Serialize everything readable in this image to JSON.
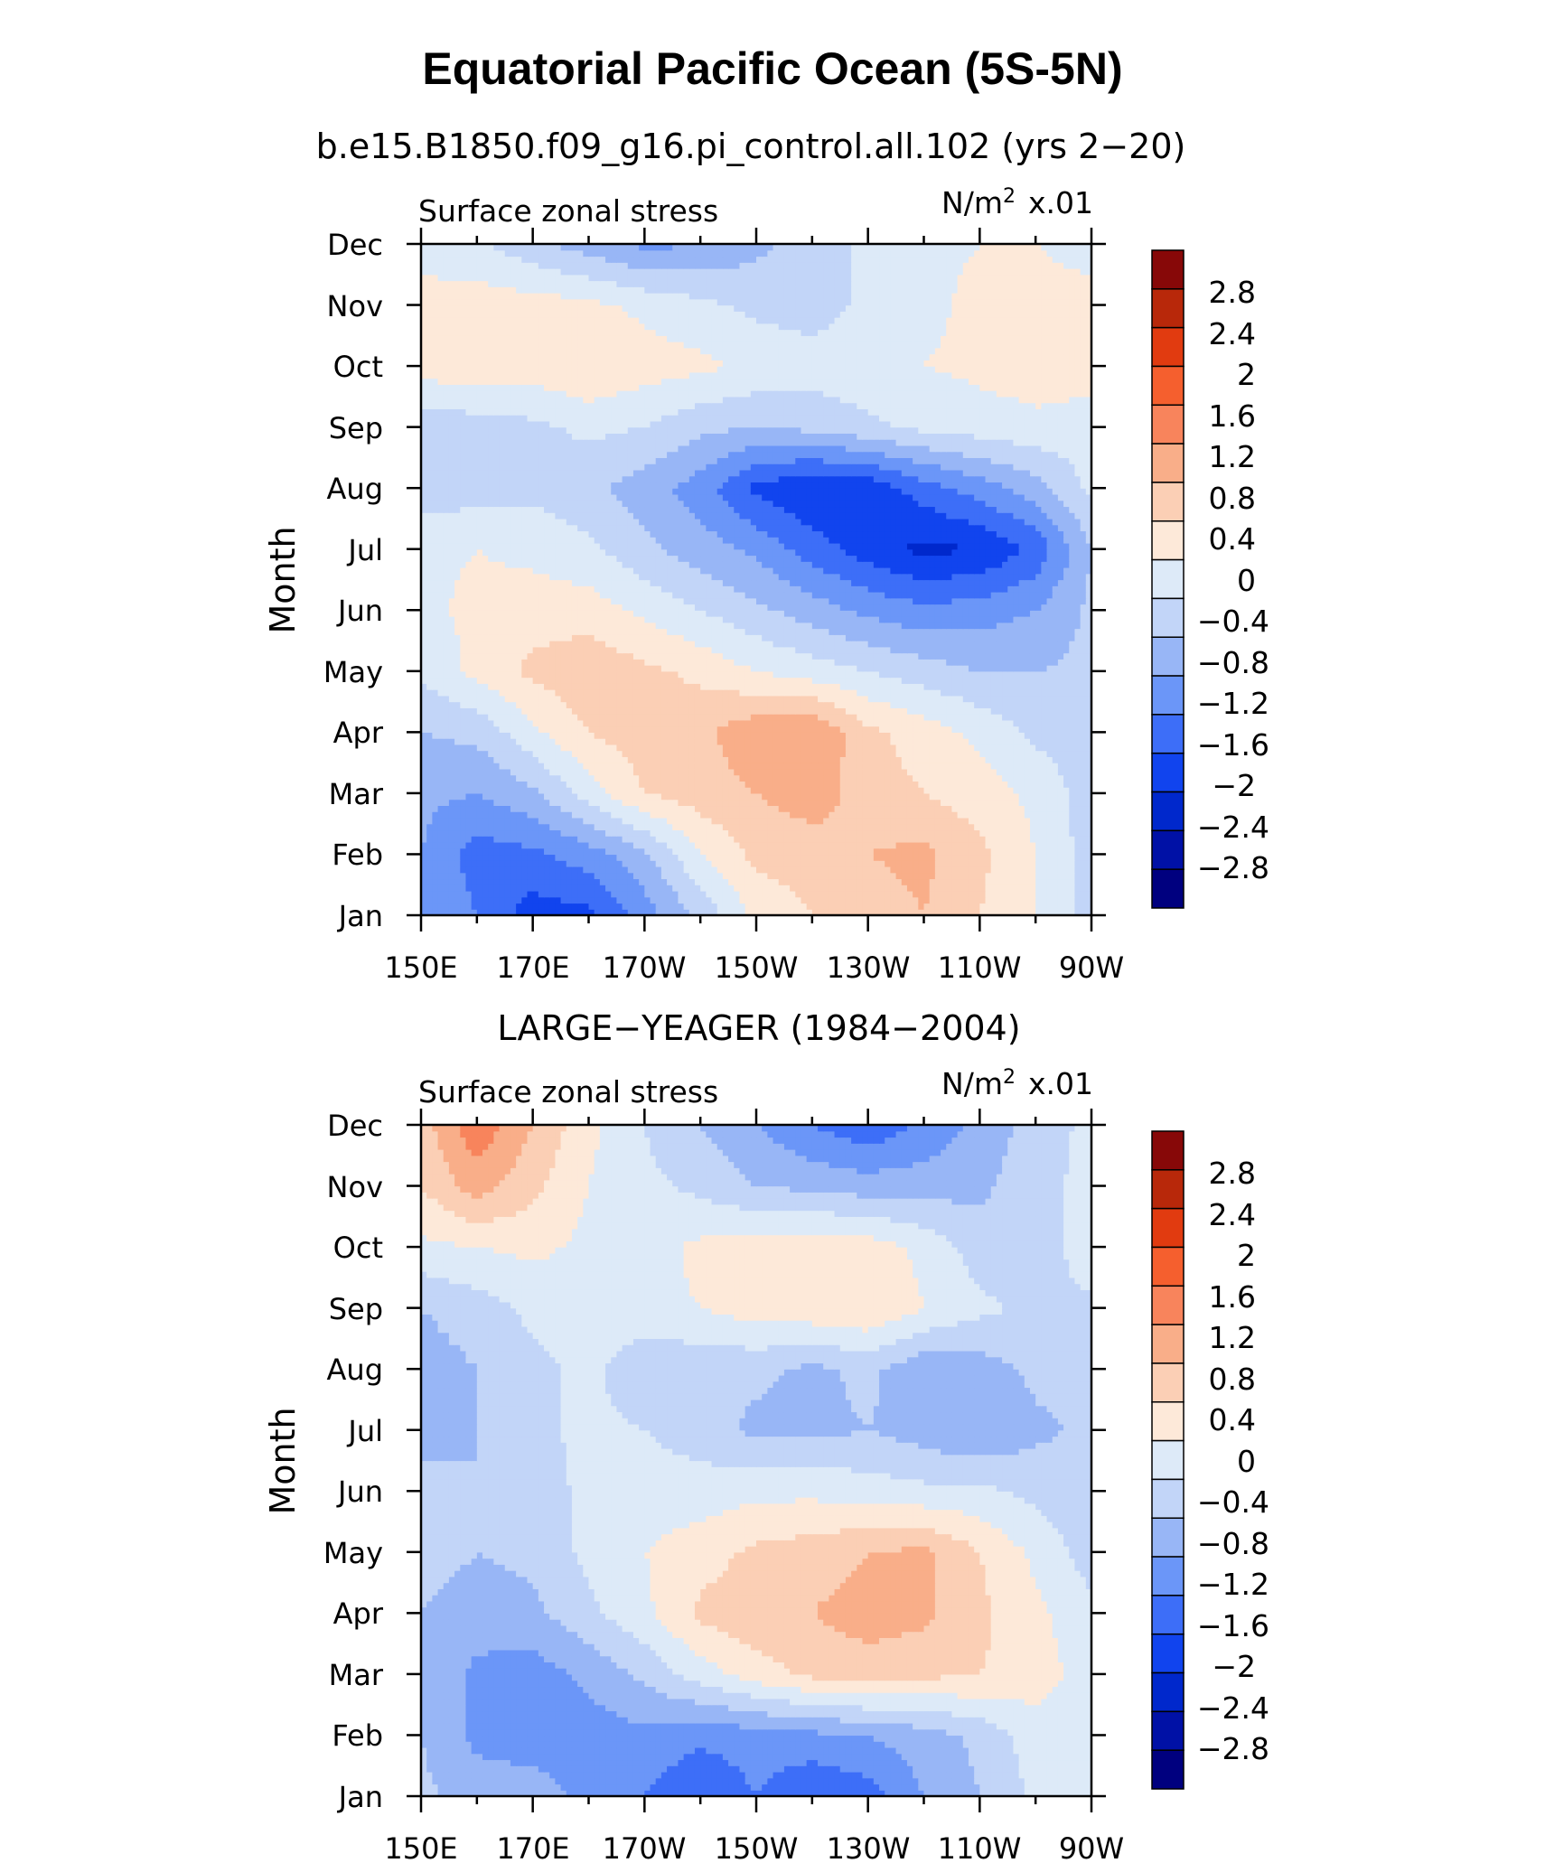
{
  "figure": {
    "title": "Equatorial Pacific Ocean (5S-5N)",
    "panel_titles": [
      "b.e15.B1850.f09_g16.pi_control.all.102 (yrs 2−20)",
      "LARGE−YEAGER (1984−2004)"
    ],
    "left_label": "Surface zonal stress",
    "units_label": "N/m",
    "units_power": "2",
    "units_scale": "x.01"
  },
  "palette": [
    "#00007f",
    "#0011a6",
    "#0028cc",
    "#1144ee",
    "#3d6ef8",
    "#6b96f8",
    "#98b6f6",
    "#c2d5f8",
    "#ddeaf8",
    "#fde9d9",
    "#fbcfb5",
    "#f9ae89",
    "#f8845c",
    "#f55f2e",
    "#e13b10",
    "#b8280a",
    "#870808"
  ],
  "chart_data": [
    {
      "type": "heatmap",
      "title": "b.e15.B1850.f09_g16.pi_control.all.102 (yrs 2−20)",
      "variable": "Surface zonal stress",
      "units": "N/m² x.01",
      "xlabel": "",
      "ylabel": "Month",
      "x_ticks": [
        "150E",
        "170E",
        "170W",
        "150W",
        "130W",
        "110W",
        "90W"
      ],
      "y_ticks": [
        "Jan",
        "Feb",
        "Mar",
        "Apr",
        "May",
        "Jun",
        "Jul",
        "Aug",
        "Sep",
        "Oct",
        "Nov",
        "Dec"
      ],
      "x_longitudes": [
        150,
        160,
        170,
        180,
        190,
        200,
        210,
        220,
        230,
        240,
        250,
        260,
        270
      ],
      "levels": [
        -2.8,
        -2.4,
        -2,
        -1.6,
        -1.2,
        -0.8,
        -0.4,
        0,
        0.4,
        0.8,
        1.2,
        1.6,
        2,
        2.4,
        2.8
      ],
      "z": [
        [
          -0.8,
          -1.2,
          -1.8,
          -1.7,
          -1.0,
          -0.3,
          0.5,
          0.8,
          1.0,
          1.2,
          0.8,
          0.4,
          -0.2
        ],
        [
          -0.8,
          -1.4,
          -1.3,
          -1.0,
          -0.5,
          0.4,
          0.9,
          1.0,
          1.2,
          1.3,
          0.9,
          0.4,
          -0.2
        ],
        [
          -0.7,
          -0.8,
          -0.5,
          0.2,
          0.8,
          1.0,
          1.2,
          1.4,
          1.0,
          0.8,
          0.6,
          0.3,
          -0.2
        ],
        [
          -0.4,
          -0.3,
          0.3,
          0.8,
          1.0,
          1.1,
          1.5,
          1.6,
          0.9,
          0.6,
          0.3,
          -0.1,
          -0.2
        ],
        [
          0.1,
          0.5,
          0.9,
          1.1,
          0.9,
          0.7,
          0.4,
          0.2,
          0.0,
          -0.2,
          -0.4,
          -0.4,
          -0.3
        ],
        [
          0.3,
          0.5,
          0.6,
          0.6,
          0.3,
          0.0,
          -0.3,
          -0.6,
          -0.9,
          -1.1,
          -1.0,
          -0.8,
          -0.3
        ],
        [
          0.3,
          0.4,
          0.3,
          0.1,
          -0.3,
          -0.6,
          -0.9,
          -1.4,
          -1.8,
          -2.1,
          -2.0,
          -1.5,
          -0.4
        ],
        [
          -0.2,
          -0.2,
          -0.1,
          -0.3,
          -0.6,
          -1.0,
          -1.7,
          -2.0,
          -1.9,
          -1.4,
          -1.0,
          -0.6,
          0.1
        ],
        [
          -0.3,
          -0.2,
          -0.1,
          0.1,
          0.0,
          -0.3,
          -0.4,
          -0.3,
          -0.1,
          0.1,
          0.2,
          0.3,
          0.2
        ],
        [
          0.6,
          0.7,
          0.6,
          0.8,
          0.6,
          0.5,
          0.3,
          0.2,
          0.3,
          0.4,
          0.5,
          0.6,
          0.6
        ],
        [
          0.5,
          0.6,
          0.6,
          0.5,
          0.3,
          0.1,
          -0.1,
          -0.2,
          0.1,
          0.3,
          0.5,
          0.5,
          0.5
        ],
        [
          0.3,
          0.1,
          -0.3,
          -0.6,
          -0.9,
          -0.8,
          -0.5,
          -0.2,
          0.1,
          0.3,
          0.4,
          0.4,
          0.3
        ]
      ]
    },
    {
      "type": "heatmap",
      "title": "LARGE−YEAGER (1984−2004)",
      "variable": "Surface zonal stress",
      "units": "N/m² x.01",
      "xlabel": "",
      "ylabel": "Month",
      "x_ticks": [
        "150E",
        "170E",
        "170W",
        "150W",
        "130W",
        "110W",
        "90W"
      ],
      "y_ticks": [
        "Jan",
        "Feb",
        "Mar",
        "Apr",
        "May",
        "Jun",
        "Jul",
        "Aug",
        "Sep",
        "Oct",
        "Nov",
        "Dec"
      ],
      "x_longitudes": [
        150,
        160,
        170,
        180,
        190,
        200,
        210,
        220,
        230,
        240,
        250,
        260,
        270
      ],
      "levels": [
        -2.8,
        -2.4,
        -2,
        -1.6,
        -1.2,
        -0.8,
        -0.4,
        0,
        0.4,
        0.8,
        1.2,
        1.6,
        2,
        2.4,
        2.8
      ],
      "z": [
        [
          -0.3,
          -0.6,
          -0.6,
          -0.9,
          -1.2,
          -1.6,
          -1.2,
          -1.6,
          -1.4,
          -0.8,
          -0.4,
          0.1,
          0.2
        ],
        [
          -0.4,
          -0.9,
          -1.0,
          -1.0,
          -0.9,
          -1.1,
          -1.0,
          -0.9,
          -0.8,
          -0.6,
          -0.3,
          0.2,
          0.1
        ],
        [
          -0.5,
          -0.9,
          -1.0,
          -0.7,
          -0.3,
          0.2,
          0.6,
          0.9,
          1.0,
          0.9,
          0.8,
          0.6,
          0.2
        ],
        [
          -0.4,
          -0.6,
          -0.5,
          -0.1,
          0.3,
          0.9,
          1.1,
          1.2,
          1.4,
          1.3,
          0.9,
          0.5,
          0.1
        ],
        [
          -0.2,
          -0.4,
          -0.3,
          0.1,
          0.4,
          0.6,
          0.9,
          1.0,
          1.2,
          1.3,
          0.8,
          0.3,
          -0.2
        ],
        [
          -0.3,
          -0.4,
          -0.2,
          0.1,
          0.2,
          0.2,
          0.3,
          0.3,
          0.2,
          0.1,
          0.1,
          -0.1,
          -0.3
        ],
        [
          -0.5,
          -0.4,
          -0.1,
          0.1,
          0.0,
          -0.2,
          -0.5,
          -0.5,
          -0.4,
          -0.6,
          -0.8,
          -0.5,
          -0.3
        ],
        [
          -0.6,
          -0.4,
          -0.1,
          0.1,
          -0.3,
          -0.3,
          -0.3,
          -0.5,
          -0.3,
          -0.7,
          -0.6,
          -0.3,
          -0.1
        ],
        [
          -0.4,
          -0.2,
          0.1,
          0.2,
          0.3,
          0.4,
          0.6,
          0.7,
          0.8,
          0.4,
          0.1,
          -0.1,
          -0.1
        ],
        [
          0.3,
          0.4,
          0.5,
          0.3,
          0.2,
          0.5,
          0.6,
          0.7,
          0.6,
          0.3,
          -0.2,
          -0.3,
          0.3
        ],
        [
          0.8,
          1.4,
          0.9,
          0.4,
          0.1,
          -0.1,
          -0.4,
          -0.5,
          -0.6,
          -0.6,
          -0.5,
          -0.1,
          0.1
        ],
        [
          1.0,
          1.9,
          1.2,
          0.5,
          0.0,
          -0.4,
          -0.8,
          -1.2,
          -1.5,
          -1.1,
          -0.7,
          -0.2,
          0.1
        ]
      ]
    }
  ],
  "colorbar_labels": [
    "2.8",
    "2.4",
    "2",
    "1.6",
    "1.2",
    "0.8",
    "0.4",
    "0",
    "−0.4",
    "−0.8",
    "−1.2",
    "−1.6",
    "−2",
    "−2.4",
    "−2.8"
  ]
}
